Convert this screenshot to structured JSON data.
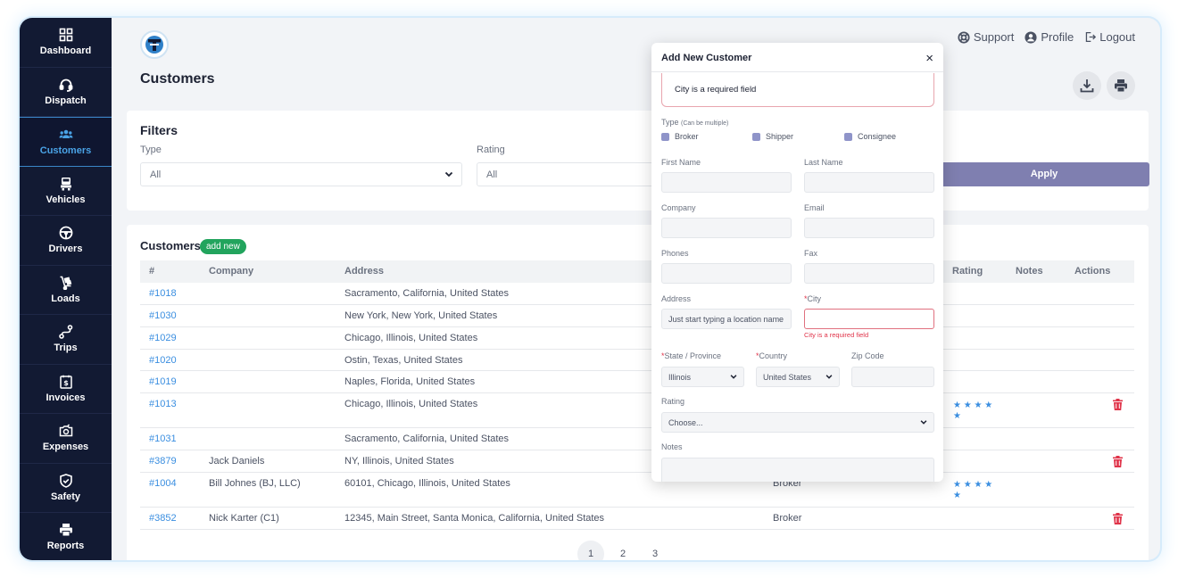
{
  "sidebar": {
    "items": [
      {
        "label": "Dashboard",
        "icon": "dashboard-icon"
      },
      {
        "label": "Dispatch",
        "icon": "headset-icon"
      },
      {
        "label": "Customers",
        "icon": "users-icon"
      },
      {
        "label": "Vehicles",
        "icon": "truck-icon"
      },
      {
        "label": "Drivers",
        "icon": "steering-wheel-icon"
      },
      {
        "label": "Loads",
        "icon": "hand-truck-icon"
      },
      {
        "label": "Trips",
        "icon": "route-icon"
      },
      {
        "label": "Invoices",
        "icon": "invoice-icon"
      },
      {
        "label": "Expenses",
        "icon": "money-icon"
      },
      {
        "label": "Safety",
        "icon": "shield-icon"
      },
      {
        "label": "Reports",
        "icon": "printer-icon"
      }
    ],
    "active": "Customers"
  },
  "header": {
    "title": "Customers",
    "support": "Support",
    "profile": "Profile",
    "logout": "Logout"
  },
  "filters": {
    "title": "Filters",
    "type_label": "Type",
    "type_value": "All",
    "rating_label": "Rating",
    "rating_value": "All",
    "apply_label": "Apply"
  },
  "list": {
    "title": "Customers",
    "add_new": "add new",
    "columns": {
      "id": "#",
      "company": "Company",
      "address": "Address",
      "rating": "Rating",
      "notes": "Notes",
      "actions": "Actions"
    },
    "rows": [
      {
        "id": "#1018",
        "company": "",
        "address": "Sacramento, California, United States",
        "type": "",
        "rating": "",
        "delete": false
      },
      {
        "id": "#1030",
        "company": "",
        "address": "New York, New York, United States",
        "type": "",
        "rating": "",
        "delete": false
      },
      {
        "id": "#1029",
        "company": "",
        "address": "Chicago, Illinois, United States",
        "type": "",
        "rating": "",
        "delete": false
      },
      {
        "id": "#1020",
        "company": "",
        "address": "Ostin, Texas, United States",
        "type": "",
        "rating": "",
        "delete": false
      },
      {
        "id": "#1019",
        "company": "",
        "address": "Naples, Florida, United States",
        "type": "",
        "rating": "",
        "delete": false
      },
      {
        "id": "#1013",
        "company": "",
        "address": "Chicago, Illinois, United States",
        "type": "",
        "rating": "★ ★ ★ ★ ★",
        "delete": true
      },
      {
        "id": "#1031",
        "company": "",
        "address": "Sacramento, California, United States",
        "type": "",
        "rating": "",
        "delete": false
      },
      {
        "id": "#3879",
        "company": "Jack Daniels",
        "address": "NY, Illinois, United States",
        "type": "",
        "rating": "",
        "delete": true
      },
      {
        "id": "#1004",
        "company": "Bill Johnes (BJ, LLC)",
        "address": "60101, Chicago, Illinois, United States",
        "type": "Broker",
        "rating": "★ ★ ★ ★ ★",
        "delete": false
      },
      {
        "id": "#3852",
        "company": "Nick Karter (C1)",
        "address": "12345, Main Street, Santa Monica, California, United States",
        "type": "Broker",
        "rating": "",
        "delete": true
      }
    ],
    "pages": [
      "1",
      "2",
      "3"
    ],
    "current_page": "1"
  },
  "modal": {
    "title": "Add New Customer",
    "close": "×",
    "alert": "City is a required field",
    "type_label": "Type",
    "type_hint": "(Can be multiple)",
    "type_options": [
      "Broker",
      "Shipper",
      "Consignee"
    ],
    "first_name_label": "First Name",
    "last_name_label": "Last Name",
    "company_label": "Company",
    "email_label": "Email",
    "phones_label": "Phones",
    "fax_label": "Fax",
    "address_label": "Address",
    "address_placeholder": "Just start typing a location name",
    "city_label": "City",
    "city_error": "City is a required field",
    "state_label": "State / Province",
    "state_value": "Illinois",
    "country_label": "Country",
    "country_value": "United States",
    "zip_label": "Zip Code",
    "rating_label": "Rating",
    "rating_value": "Choose...",
    "notes_label": "Notes",
    "required_mark": "*"
  },
  "colors": {
    "sidebar_bg": "#121a33",
    "accent": "#3a8ee0",
    "apply": "#7f7fb0",
    "add_new": "#22a45d",
    "danger": "#e0344a"
  }
}
